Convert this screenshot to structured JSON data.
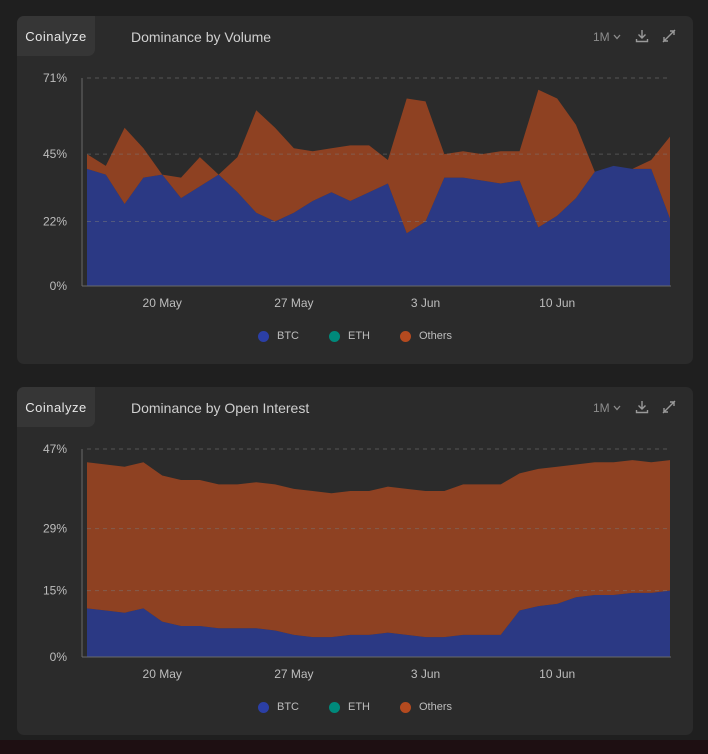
{
  "chart_data": [
    {
      "type": "area",
      "title": "Dominance by Volume",
      "stacked": true,
      "grid": true,
      "legend_position": "bottom",
      "y_ticks": [
        "71%",
        "45%",
        "22%",
        "0%"
      ],
      "y_tick_values": [
        71,
        45,
        22,
        0
      ],
      "ylim": [
        0,
        71
      ],
      "x_tick_labels": [
        "20 May",
        "27 May",
        "3 Jun",
        "10 Jun"
      ],
      "x_tick_index": [
        4,
        11,
        18,
        25
      ],
      "x": [
        "2024-05-16",
        "2024-05-17",
        "2024-05-18",
        "2024-05-19",
        "2024-05-20",
        "2024-05-21",
        "2024-05-22",
        "2024-05-23",
        "2024-05-24",
        "2024-05-25",
        "2024-05-26",
        "2024-05-27",
        "2024-05-28",
        "2024-05-29",
        "2024-05-30",
        "2024-05-31",
        "2024-06-01",
        "2024-06-02",
        "2024-06-03",
        "2024-06-04",
        "2024-06-05",
        "2024-06-06",
        "2024-06-07",
        "2024-06-08",
        "2024-06-09",
        "2024-06-10",
        "2024-06-11",
        "2024-06-12",
        "2024-06-13",
        "2024-06-14",
        "2024-06-15",
        "2024-06-16"
      ],
      "series": [
        {
          "name": "BTC",
          "color": "#2b3fa6",
          "values": [
            40,
            38,
            28,
            37,
            38,
            30,
            34,
            38,
            32,
            25,
            22,
            25,
            29,
            32,
            29,
            32,
            35,
            18,
            22,
            37,
            37,
            36,
            35,
            36,
            20,
            24,
            30,
            39,
            41,
            40,
            40,
            23
          ]
        },
        {
          "name": "ETH",
          "color": "#00897b",
          "values": [
            0,
            0,
            0,
            0,
            0,
            0,
            0,
            0,
            0,
            0,
            0,
            0,
            0,
            0,
            0,
            0,
            0,
            0,
            0,
            0,
            0,
            0,
            0,
            0,
            0,
            0,
            0,
            0,
            0,
            0,
            0,
            0
          ]
        },
        {
          "name": "Others",
          "color": "#b44a1f",
          "values": [
            5,
            3,
            26,
            10,
            0,
            7,
            10,
            0,
            12,
            35,
            32,
            22,
            17,
            15,
            19,
            16,
            8,
            46,
            41,
            8,
            9,
            9,
            11,
            10,
            47,
            40,
            25,
            0,
            0,
            0,
            3,
            28
          ]
        }
      ]
    },
    {
      "type": "area",
      "title": "Dominance by Open Interest",
      "stacked": true,
      "grid": true,
      "legend_position": "bottom",
      "y_ticks": [
        "47%",
        "29%",
        "15%",
        "0%"
      ],
      "y_tick_values": [
        47,
        29,
        15,
        0
      ],
      "ylim": [
        0,
        47
      ],
      "x_tick_labels": [
        "20 May",
        "27 May",
        "3 Jun",
        "10 Jun"
      ],
      "x_tick_index": [
        4,
        11,
        18,
        25
      ],
      "x": [
        "2024-05-16",
        "2024-05-17",
        "2024-05-18",
        "2024-05-19",
        "2024-05-20",
        "2024-05-21",
        "2024-05-22",
        "2024-05-23",
        "2024-05-24",
        "2024-05-25",
        "2024-05-26",
        "2024-05-27",
        "2024-05-28",
        "2024-05-29",
        "2024-05-30",
        "2024-05-31",
        "2024-06-01",
        "2024-06-02",
        "2024-06-03",
        "2024-06-04",
        "2024-06-05",
        "2024-06-06",
        "2024-06-07",
        "2024-06-08",
        "2024-06-09",
        "2024-06-10",
        "2024-06-11",
        "2024-06-12",
        "2024-06-13",
        "2024-06-14",
        "2024-06-15",
        "2024-06-16"
      ],
      "series": [
        {
          "name": "BTC",
          "color": "#2b3fa6",
          "values": [
            11,
            10.5,
            10,
            11,
            8,
            7,
            7,
            6.5,
            6.5,
            6.5,
            6,
            5,
            4.5,
            4.5,
            5,
            5,
            5.5,
            5,
            4.5,
            4.5,
            5,
            5,
            5,
            10.5,
            11.5,
            12,
            13.5,
            14,
            14,
            14.5,
            14.5,
            15
          ]
        },
        {
          "name": "ETH",
          "color": "#00897b",
          "values": [
            0,
            0,
            0,
            0,
            0,
            0,
            0,
            0,
            0,
            0,
            0,
            0,
            0,
            0,
            0,
            0,
            0,
            0,
            0,
            0,
            0,
            0,
            0,
            0,
            0,
            0,
            0,
            0,
            0,
            0,
            0,
            0
          ]
        },
        {
          "name": "Others",
          "color": "#b44a1f",
          "values": [
            33,
            33,
            33,
            33,
            33,
            33,
            33,
            32.5,
            32.5,
            33,
            33,
            33,
            33,
            32.5,
            32.5,
            32.5,
            33,
            33,
            33,
            33,
            34,
            34,
            34,
            31,
            31,
            31,
            30,
            30,
            30,
            30,
            29.5,
            29.5
          ]
        }
      ]
    }
  ],
  "brand": "Coinalyze",
  "panels": [
    {
      "title": "Dominance by Volume",
      "range_label": "1M"
    },
    {
      "title": "Dominance by Open Interest",
      "range_label": "1M"
    }
  ],
  "legend": [
    "BTC",
    "ETH",
    "Others"
  ],
  "colors": {
    "btc": "#2b3fa6",
    "eth": "#00897b",
    "others": "#b44a1f",
    "panel_bg": "#2b2b2b",
    "page_bg": "#1f1f1f"
  },
  "icons": [
    "chevron-down-icon",
    "download-icon",
    "compress-icon"
  ]
}
